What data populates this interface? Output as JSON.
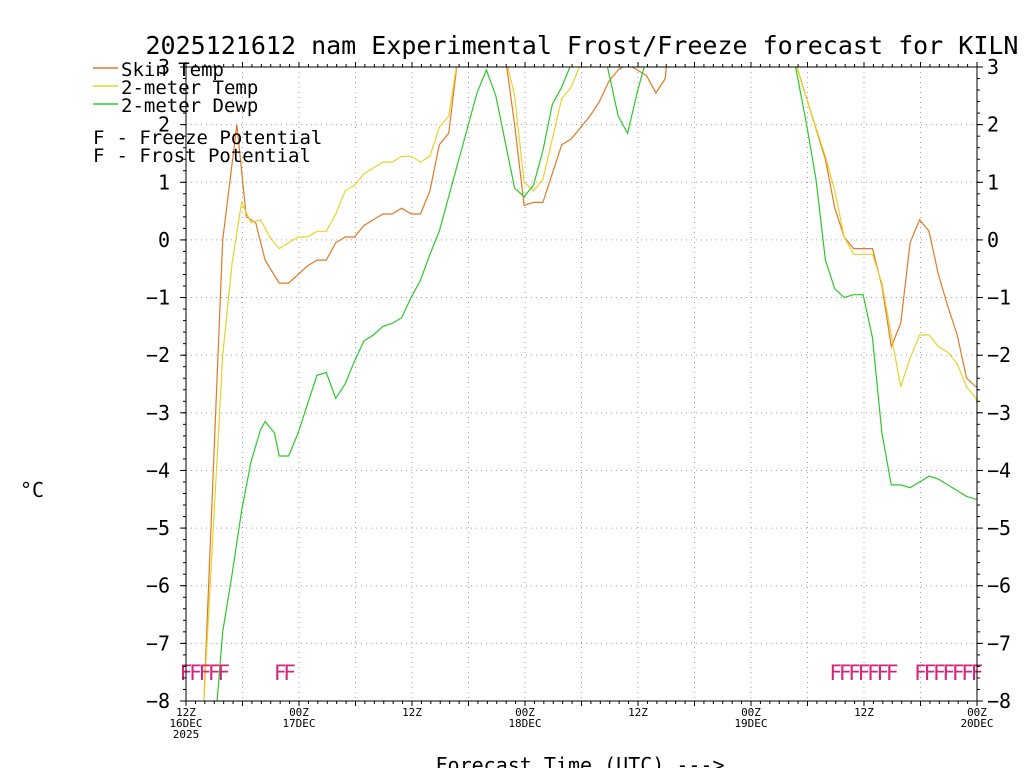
{
  "chart_data": {
    "type": "line",
    "title": "2025121612 nam Experimental Frost/Freeze forecast for KILN",
    "xlabel": "Forecast Time (UTC) --->",
    "ylabel": "°C",
    "xlim": [
      0,
      84
    ],
    "ylim": [
      -8,
      3
    ],
    "grid": true,
    "x_ticks": [
      {
        "x": 0,
        "line1": "12Z",
        "line2": "16DEC",
        "line3": "2025"
      },
      {
        "x": 12,
        "line1": "00Z",
        "line2": "17DEC",
        "line3": ""
      },
      {
        "x": 24,
        "line1": "12Z",
        "line2": "",
        "line3": ""
      },
      {
        "x": 36,
        "line1": "00Z",
        "line2": "18DEC",
        "line3": ""
      },
      {
        "x": 48,
        "line1": "12Z",
        "line2": "",
        "line3": ""
      },
      {
        "x": 60,
        "line1": "00Z",
        "line2": "19DEC",
        "line3": ""
      },
      {
        "x": 72,
        "line1": "12Z",
        "line2": "",
        "line3": ""
      },
      {
        "x": 84,
        "line1": "00Z",
        "line2": "20DEC",
        "line3": ""
      }
    ],
    "y_ticks": [
      3,
      2,
      1,
      0,
      -1,
      -2,
      -3,
      -4,
      -5,
      -6,
      -7,
      -8
    ],
    "y_tick_labels": [
      "3",
      "2",
      "1",
      "0",
      "−1",
      "−2",
      "−3",
      "−4",
      "−5",
      "−6",
      "−7",
      "−8"
    ],
    "series": [
      {
        "name": "Skin Temp",
        "color": "#e07a28",
        "points": [
          [
            1.9,
            -8.0
          ],
          [
            3.9,
            0.0
          ],
          [
            5.4,
            2.0
          ],
          [
            6.4,
            0.4
          ],
          [
            7.4,
            0.3
          ],
          [
            8.4,
            -0.35
          ],
          [
            9.9,
            -0.75
          ],
          [
            10.9,
            -0.75
          ],
          [
            11.9,
            -0.6
          ],
          [
            12.9,
            -0.45
          ],
          [
            13.9,
            -0.35
          ],
          [
            14.9,
            -0.35
          ],
          [
            15.9,
            -0.05
          ],
          [
            16.9,
            0.05
          ],
          [
            17.9,
            0.05
          ],
          [
            18.9,
            0.25
          ],
          [
            19.9,
            0.35
          ],
          [
            20.9,
            0.45
          ],
          [
            21.9,
            0.45
          ],
          [
            22.9,
            0.55
          ],
          [
            23.9,
            0.45
          ],
          [
            24.9,
            0.45
          ],
          [
            25.9,
            0.85
          ],
          [
            26.9,
            1.65
          ],
          [
            27.9,
            1.85
          ],
          [
            28.9,
            3.2
          ],
          [
            33.9,
            3.2
          ],
          [
            34.9,
            2.0
          ],
          [
            35.9,
            0.6
          ],
          [
            36.9,
            0.65
          ],
          [
            37.9,
            0.65
          ],
          [
            38.9,
            1.15
          ],
          [
            39.9,
            1.65
          ],
          [
            40.9,
            1.75
          ],
          [
            41.9,
            1.95
          ],
          [
            42.9,
            2.15
          ],
          [
            43.9,
            2.4
          ],
          [
            44.9,
            2.75
          ],
          [
            45.9,
            2.95
          ],
          [
            46.9,
            3.05
          ],
          [
            47.9,
            2.95
          ],
          [
            48.9,
            2.85
          ],
          [
            49.9,
            2.55
          ],
          [
            50.9,
            2.8
          ],
          [
            51.1,
            3.2
          ],
          [
            64.5,
            3.2
          ],
          [
            67.9,
            1.4
          ],
          [
            68.9,
            0.55
          ],
          [
            69.9,
            0.05
          ],
          [
            70.9,
            -0.15
          ],
          [
            71.9,
            -0.15
          ],
          [
            72.9,
            -0.15
          ],
          [
            73.9,
            -0.8
          ],
          [
            74.9,
            -1.85
          ],
          [
            75.9,
            -1.45
          ],
          [
            76.9,
            -0.05
          ],
          [
            77.9,
            0.35
          ],
          [
            78.9,
            0.15
          ],
          [
            79.9,
            -0.6
          ],
          [
            80.9,
            -1.15
          ],
          [
            81.9,
            -1.65
          ],
          [
            82.9,
            -2.4
          ],
          [
            83.9,
            -2.55
          ],
          [
            84.0,
            -2.55
          ]
        ]
      },
      {
        "name": "2-meter Temp",
        "color": "#e8d22a",
        "points": [
          [
            1.9,
            -8.0
          ],
          [
            3.9,
            -2.0
          ],
          [
            4.9,
            -0.4
          ],
          [
            5.9,
            0.65
          ],
          [
            6.9,
            0.3
          ],
          [
            7.9,
            0.35
          ],
          [
            8.9,
            0.05
          ],
          [
            9.9,
            -0.15
          ],
          [
            10.9,
            -0.05
          ],
          [
            11.9,
            0.05
          ],
          [
            12.9,
            0.05
          ],
          [
            13.9,
            0.15
          ],
          [
            14.9,
            0.15
          ],
          [
            15.9,
            0.45
          ],
          [
            16.9,
            0.85
          ],
          [
            17.9,
            0.95
          ],
          [
            18.9,
            1.15
          ],
          [
            19.9,
            1.25
          ],
          [
            20.9,
            1.35
          ],
          [
            21.9,
            1.35
          ],
          [
            22.9,
            1.45
          ],
          [
            23.9,
            1.45
          ],
          [
            24.9,
            1.35
          ],
          [
            25.9,
            1.45
          ],
          [
            26.9,
            1.95
          ],
          [
            27.9,
            2.15
          ],
          [
            28.9,
            3.2
          ],
          [
            33.9,
            3.2
          ],
          [
            34.9,
            2.5
          ],
          [
            35.9,
            1.0
          ],
          [
            36.9,
            0.85
          ],
          [
            37.9,
            1.05
          ],
          [
            38.9,
            1.75
          ],
          [
            39.9,
            2.45
          ],
          [
            40.9,
            2.65
          ],
          [
            41.9,
            3.05
          ],
          [
            42.5,
            3.2
          ],
          [
            64.5,
            3.2
          ],
          [
            65.9,
            2.45
          ],
          [
            66.9,
            1.95
          ],
          [
            67.9,
            1.45
          ],
          [
            68.9,
            0.85
          ],
          [
            69.9,
            0.05
          ],
          [
            70.9,
            -0.25
          ],
          [
            71.9,
            -0.25
          ],
          [
            72.9,
            -0.25
          ],
          [
            73.9,
            -0.75
          ],
          [
            74.9,
            -1.65
          ],
          [
            75.9,
            -2.55
          ],
          [
            76.9,
            -2.05
          ],
          [
            77.9,
            -1.65
          ],
          [
            78.9,
            -1.65
          ],
          [
            79.9,
            -1.85
          ],
          [
            80.9,
            -1.95
          ],
          [
            81.9,
            -2.15
          ],
          [
            82.9,
            -2.55
          ],
          [
            83.9,
            -2.75
          ],
          [
            84.0,
            -2.85
          ]
        ]
      },
      {
        "name": "2-meter Dewp",
        "color": "#2ec82a",
        "points": [
          [
            3.3,
            -8.0
          ],
          [
            3.9,
            -6.8
          ],
          [
            4.9,
            -5.8
          ],
          [
            5.9,
            -4.7
          ],
          [
            6.9,
            -3.85
          ],
          [
            7.9,
            -3.3
          ],
          [
            8.4,
            -3.15
          ],
          [
            9.4,
            -3.35
          ],
          [
            9.9,
            -3.75
          ],
          [
            10.9,
            -3.75
          ],
          [
            11.9,
            -3.35
          ],
          [
            12.9,
            -2.85
          ],
          [
            13.9,
            -2.35
          ],
          [
            14.9,
            -2.3
          ],
          [
            15.9,
            -2.75
          ],
          [
            16.9,
            -2.5
          ],
          [
            17.9,
            -2.1
          ],
          [
            18.9,
            -1.75
          ],
          [
            19.9,
            -1.65
          ],
          [
            20.9,
            -1.5
          ],
          [
            21.9,
            -1.45
          ],
          [
            22.9,
            -1.35
          ],
          [
            23.9,
            -1.0
          ],
          [
            24.9,
            -0.7
          ],
          [
            25.9,
            -0.25
          ],
          [
            26.9,
            0.15
          ],
          [
            27.9,
            0.75
          ],
          [
            28.9,
            1.35
          ],
          [
            29.9,
            1.95
          ],
          [
            30.9,
            2.55
          ],
          [
            31.9,
            2.95
          ],
          [
            32.9,
            2.5
          ],
          [
            33.9,
            1.7
          ],
          [
            34.9,
            0.9
          ],
          [
            35.9,
            0.75
          ],
          [
            36.9,
            0.95
          ],
          [
            37.9,
            1.55
          ],
          [
            38.9,
            2.35
          ],
          [
            39.9,
            2.65
          ],
          [
            40.9,
            3.05
          ],
          [
            41.5,
            3.2
          ],
          [
            44.5,
            3.2
          ],
          [
            45.9,
            2.15
          ],
          [
            46.9,
            1.85
          ],
          [
            47.9,
            2.55
          ],
          [
            48.9,
            3.15
          ],
          [
            49.1,
            3.2
          ],
          [
            64.5,
            3.2
          ],
          [
            65.9,
            2.0
          ],
          [
            66.9,
            1.05
          ],
          [
            67.9,
            -0.35
          ],
          [
            68.9,
            -0.85
          ],
          [
            69.9,
            -1.0
          ],
          [
            70.9,
            -0.95
          ],
          [
            71.9,
            -0.95
          ],
          [
            72.9,
            -1.7
          ],
          [
            73.9,
            -3.35
          ],
          [
            74.9,
            -4.25
          ],
          [
            75.9,
            -4.25
          ],
          [
            76.9,
            -4.3
          ],
          [
            77.9,
            -4.2
          ],
          [
            78.9,
            -4.1
          ],
          [
            79.9,
            -4.15
          ],
          [
            80.9,
            -4.25
          ],
          [
            81.9,
            -4.35
          ],
          [
            82.9,
            -4.45
          ],
          [
            83.9,
            -4.5
          ],
          [
            84.0,
            -4.5
          ]
        ]
      }
    ],
    "legend": {
      "placement": "top-left",
      "items": [
        {
          "label": "Skin Temp",
          "color": "#e07a28"
        },
        {
          "label": "2-meter Temp",
          "color": "#e8d22a"
        },
        {
          "label": "2-meter Dewp",
          "color": "#2ec82a"
        }
      ],
      "potentials": [
        {
          "symbol": "F",
          "label": " - Freeze Potential",
          "color": "#d4247c"
        },
        {
          "symbol": "F",
          "label": " - Frost Potential",
          "color": "#3d3dff"
        }
      ]
    },
    "freeze_marks": {
      "symbol": "F",
      "color": "#d4247c",
      "y": -7.5,
      "x": [
        0,
        1,
        2,
        3,
        4,
        10,
        11,
        69,
        70,
        71,
        72,
        73,
        74,
        75,
        78,
        79,
        80,
        81,
        82,
        83,
        84
      ]
    }
  }
}
